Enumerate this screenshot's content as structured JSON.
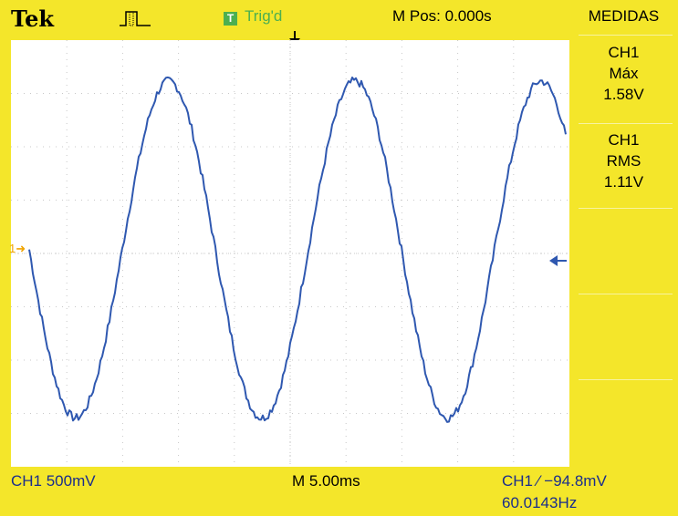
{
  "header": {
    "brand": "Tek",
    "acquisition_icon": "run-pulse-icon",
    "trigger_badge": "T",
    "trigger_status": "Trig'd",
    "horizontal_position": "M Pos: 0.000s"
  },
  "side_panel": {
    "title": "MEDIDAS",
    "measurements": [
      {
        "channel": "CH1",
        "type": "Máx",
        "value": "1.58V"
      },
      {
        "channel": "CH1",
        "type": "RMS",
        "value": "1.11V"
      }
    ]
  },
  "screen": {
    "channel_marker": "1",
    "waveform_color": "#2f58b0",
    "grid": {
      "divisions_x": 10,
      "divisions_y": 8
    }
  },
  "footer": {
    "ch1_scale": "CH1  500mV",
    "timebase": "M 5.00ms",
    "trigger": "CH1 ⁄ −94.8mV",
    "frequency": "60.0143Hz"
  },
  "colors": {
    "bezel": "#f4e62a",
    "screen": "#ffffff",
    "trace": "#2f58b0",
    "channel_text": "#1a2d8c",
    "trigger_green": "#4caf50",
    "ground_marker": "#f0a400"
  },
  "waveform": {
    "frequency_hz": 60.0143,
    "volts_per_div": 0.5,
    "max_v": 1.58,
    "rms_v": 1.11
  }
}
